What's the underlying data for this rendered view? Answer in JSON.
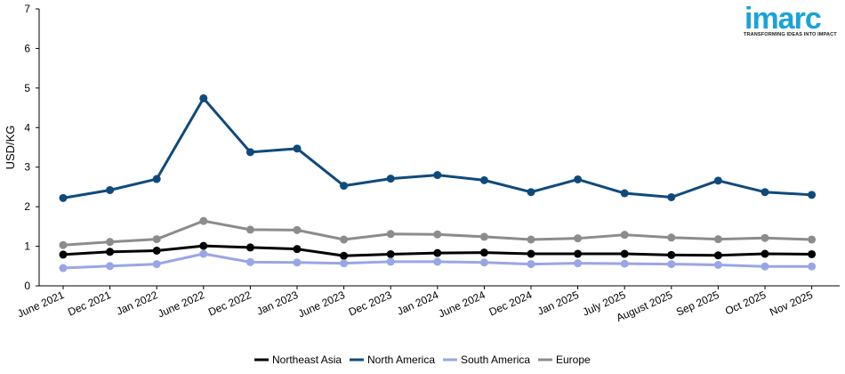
{
  "logo": {
    "word": "imarc",
    "tagline": "TRANSFORMING IDEAS INTO IMPACT",
    "color": "#1aa3d9"
  },
  "chart_data": {
    "type": "line",
    "ylabel": "USD/KG",
    "xlabel": "",
    "ylim": [
      0,
      7
    ],
    "yticks": [
      0,
      1,
      2,
      3,
      4,
      5,
      6,
      7
    ],
    "grid": false,
    "legend_position": "bottom",
    "categories": [
      "June 2021",
      "Dec 2021",
      "Jan 2022",
      "June 2022",
      "Dec 2022",
      "Jan 2023",
      "June 2023",
      "Dec 2023",
      "Jan 2024",
      "June 2024",
      "Dec 2024",
      "Jan 2025",
      "July 2025",
      "August 2025",
      "Sep 2025",
      "Oct 2025",
      "Nov 2025"
    ],
    "series": [
      {
        "name": "Northeast Asia",
        "color": "#000000",
        "values": [
          0.79,
          0.86,
          0.89,
          1.01,
          0.97,
          0.93,
          0.76,
          0.8,
          0.83,
          0.84,
          0.81,
          0.81,
          0.81,
          0.78,
          0.77,
          0.81,
          0.8
        ]
      },
      {
        "name": "North America",
        "color": "#0f4a7c",
        "values": [
          2.22,
          2.42,
          2.7,
          4.74,
          3.38,
          3.47,
          2.53,
          2.71,
          2.8,
          2.67,
          2.37,
          2.69,
          2.34,
          2.24,
          2.66,
          2.37,
          2.3
        ]
      },
      {
        "name": "South America",
        "color": "#99a6e6",
        "values": [
          0.45,
          0.5,
          0.55,
          0.81,
          0.6,
          0.59,
          0.57,
          0.61,
          0.61,
          0.59,
          0.55,
          0.57,
          0.56,
          0.55,
          0.53,
          0.49,
          0.49
        ]
      },
      {
        "name": "Europe",
        "color": "#8c8c8c",
        "values": [
          1.03,
          1.11,
          1.18,
          1.64,
          1.42,
          1.41,
          1.17,
          1.31,
          1.3,
          1.24,
          1.17,
          1.2,
          1.29,
          1.22,
          1.18,
          1.21,
          1.17
        ]
      }
    ]
  }
}
